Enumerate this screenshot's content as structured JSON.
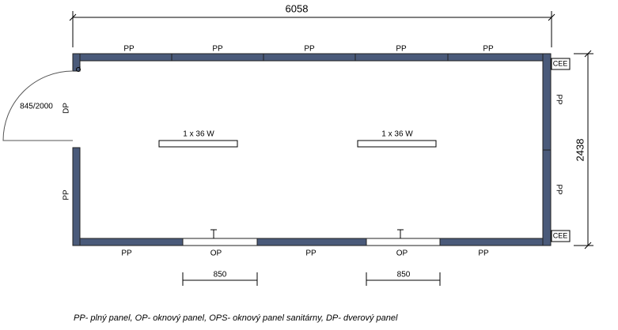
{
  "dimensions": {
    "length": "6058",
    "width": "2438"
  },
  "walls": {
    "top": [
      "PP",
      "PP",
      "PP",
      "PP",
      "PP"
    ],
    "bottom": [
      "PP",
      "OP",
      "PP",
      "OP",
      "PP"
    ],
    "left": [
      "DP",
      "PP"
    ],
    "right": [
      "PP",
      "PP"
    ]
  },
  "door": {
    "size": "845/2000"
  },
  "lights": [
    "1 x 36 W",
    "1 x 36 W"
  ],
  "sockets": [
    "CEE",
    "CEE"
  ],
  "window_dimensions": [
    "850",
    "850"
  ],
  "legend": "PP- plný panel, OP- oknový panel, OPS- oknový panel sanitárny, DP- dverový panel"
}
